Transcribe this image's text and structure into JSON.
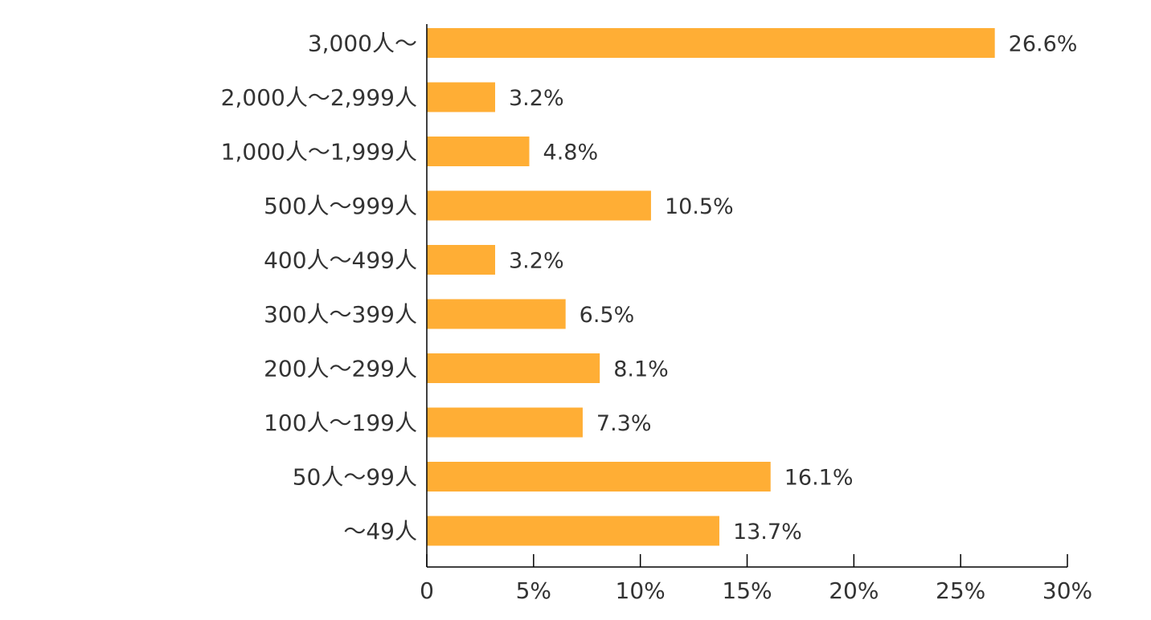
{
  "chart_data": {
    "type": "bar",
    "orientation": "horizontal",
    "categories": [
      "3,000人～",
      "2,000人～2,999人",
      "1,000人～1,999人",
      "500人～999人",
      "400人～499人",
      "300人～399人",
      "200人～299人",
      "100人～199人",
      "50人～99人",
      "～49人"
    ],
    "values": [
      26.6,
      3.2,
      4.8,
      10.5,
      3.2,
      6.5,
      8.1,
      7.3,
      16.1,
      13.7
    ],
    "value_labels": [
      "26.6%",
      "3.2%",
      "4.8%",
      "10.5%",
      "3.2%",
      "6.5%",
      "8.1%",
      "7.3%",
      "16.1%",
      "13.7%"
    ],
    "x_ticks": [
      0,
      5,
      10,
      15,
      20,
      25,
      30
    ],
    "x_tick_labels": [
      "0",
      "5%",
      "10%",
      "15%",
      "20%",
      "25%",
      "30%"
    ],
    "xlim": [
      0,
      30
    ],
    "title": "",
    "xlabel": "",
    "ylabel": "",
    "grid": false,
    "legend": "none",
    "bar_color": "#FFAE35",
    "axis_color": "#000000",
    "text_color": "#333333"
  }
}
